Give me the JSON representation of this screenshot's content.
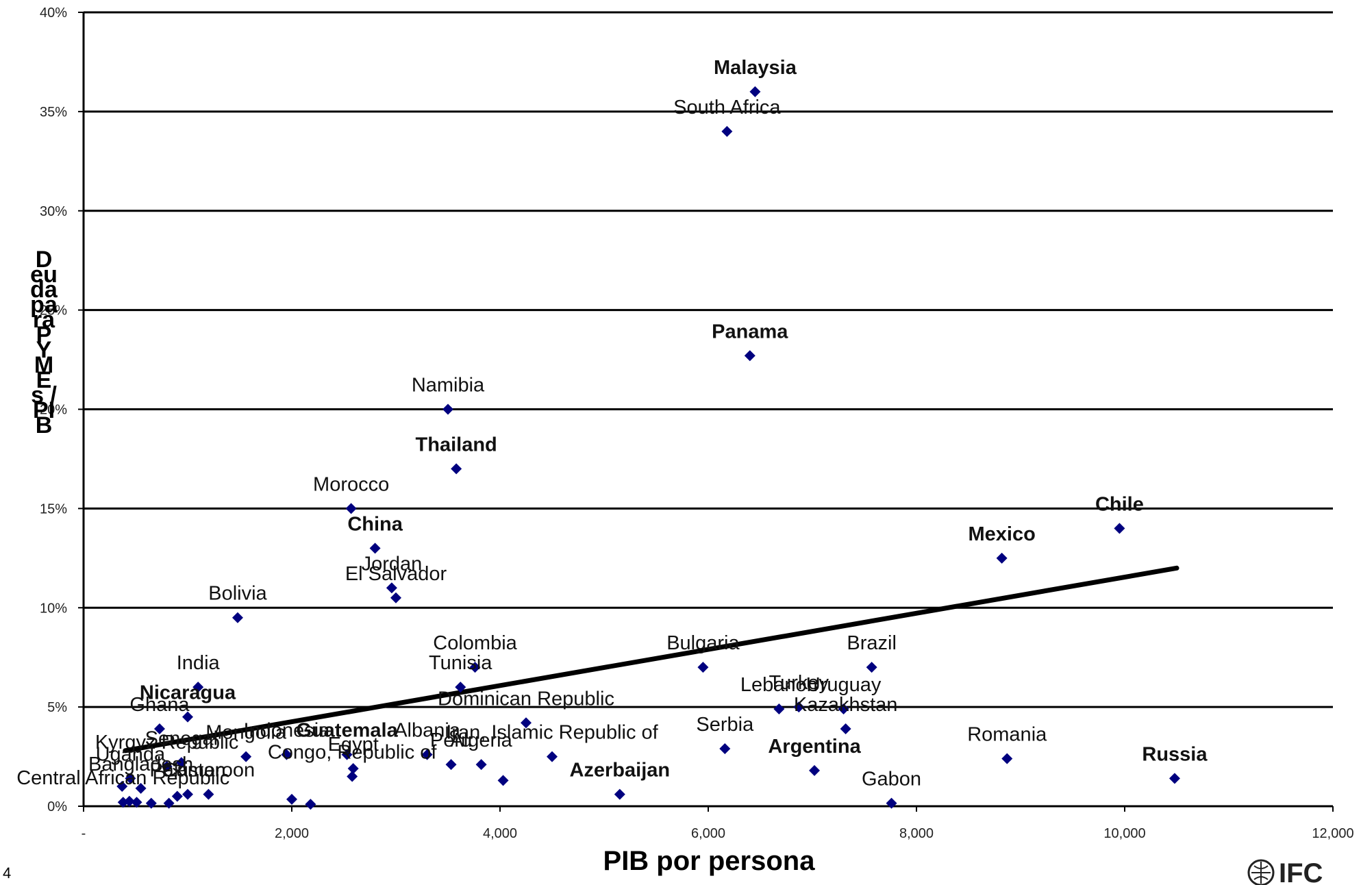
{
  "chart_data": {
    "type": "scatter",
    "xlabel": "PIB por persona",
    "ylabel": "Deuda para PYMEs / PIB",
    "xlim": [
      0,
      12000
    ],
    "ylim": [
      0,
      40
    ],
    "xticks": [
      {
        "value": 0,
        "label": "-"
      },
      {
        "value": 2000,
        "label": "2,000"
      },
      {
        "value": 4000,
        "label": "4,000"
      },
      {
        "value": 6000,
        "label": "6,000"
      },
      {
        "value": 8000,
        "label": "8,000"
      },
      {
        "value": 10000,
        "label": "10,000"
      },
      {
        "value": 12000,
        "label": "12,000"
      }
    ],
    "yticks": [
      {
        "value": 0,
        "label": "0%"
      },
      {
        "value": 5,
        "label": "5%"
      },
      {
        "value": 10,
        "label": "10%"
      },
      {
        "value": 15,
        "label": "15%"
      },
      {
        "value": 20,
        "label": "20%"
      },
      {
        "value": 25,
        "label": "25%"
      },
      {
        "value": 30,
        "label": "30%"
      },
      {
        "value": 35,
        "label": "35%"
      },
      {
        "value": 40,
        "label": "40%"
      }
    ],
    "grid": true,
    "marker_color": "#00007f",
    "trendline": {
      "x": [
        400,
        10500
      ],
      "y": [
        2.8,
        12.0
      ],
      "color": "#000000"
    },
    "points": [
      {
        "label": "Malaysia",
        "x": 6450,
        "y": 36.0,
        "bold": true,
        "color": "#000000"
      },
      {
        "label": "South Africa",
        "x": 6180,
        "y": 34.0,
        "bold": false,
        "color": "#000000"
      },
      {
        "label": "Panama",
        "x": 6400,
        "y": 22.7,
        "bold": true,
        "color": "#1f3a60"
      },
      {
        "label": "Namibia",
        "x": 3500,
        "y": 20.0,
        "bold": false,
        "color": "#000000"
      },
      {
        "label": "Thailand",
        "x": 3580,
        "y": 17.0,
        "bold": true,
        "color": "#000000"
      },
      {
        "label": "Morocco",
        "x": 2570,
        "y": 15.0,
        "bold": false,
        "color": "#000000"
      },
      {
        "label": "China",
        "x": 2800,
        "y": 13.0,
        "bold": true,
        "color": "#000000"
      },
      {
        "label": "Jordan",
        "x": 2960,
        "y": 11.0,
        "bold": false,
        "color": "#000000"
      },
      {
        "label": "El Salvador",
        "x": 3000,
        "y": 10.5,
        "bold": false,
        "color": "#000000"
      },
      {
        "label": "Bolivia",
        "x": 1480,
        "y": 9.5,
        "bold": false,
        "color": "#000000"
      },
      {
        "label": "Mexico",
        "x": 8820,
        "y": 12.5,
        "bold": true,
        "color": "#0000e0"
      },
      {
        "label": "Chile",
        "x": 9950,
        "y": 14.0,
        "bold": true,
        "color": "#000000"
      },
      {
        "label": "Colombia",
        "x": 3760,
        "y": 7.0,
        "bold": false,
        "color": "#000000"
      },
      {
        "label": "Tunisia",
        "x": 3620,
        "y": 6.0,
        "bold": false,
        "color": "#000000"
      },
      {
        "label": "Dominican Republic",
        "x": 4250,
        "y": 4.2,
        "bold": false,
        "color": "#000000"
      },
      {
        "label": "Iran, Islamic Republic of",
        "x": 4500,
        "y": 2.5,
        "bold": false,
        "color": "#000000"
      },
      {
        "label": "Albania",
        "x": 3300,
        "y": 2.6,
        "bold": false,
        "color": "#000000"
      },
      {
        "label": "Peru",
        "x": 3530,
        "y": 2.1,
        "bold": false,
        "color": "#000000"
      },
      {
        "label": "Algeria",
        "x": 3820,
        "y": 2.1,
        "bold": false,
        "color": "#000000"
      },
      {
        "label": "Azerbaijan",
        "x": 5150,
        "y": 0.6,
        "bold": true,
        "color": "#000000"
      },
      {
        "label": "Bulgaria",
        "x": 5950,
        "y": 7.0,
        "bold": false,
        "color": "#000000"
      },
      {
        "label": "Brazil",
        "x": 7570,
        "y": 7.0,
        "bold": false,
        "color": "#000000"
      },
      {
        "label": "Lebanon",
        "x": 6680,
        "y": 4.9,
        "bold": false,
        "color": "#000000"
      },
      {
        "label": "Turkey",
        "x": 6870,
        "y": 5.0,
        "bold": false,
        "color": "#000000"
      },
      {
        "label": "Uruguay",
        "x": 7300,
        "y": 4.9,
        "bold": false,
        "color": "#000000"
      },
      {
        "label": "Kazakhstan",
        "x": 7320,
        "y": 3.9,
        "bold": false,
        "color": "#000000"
      },
      {
        "label": "Serbia",
        "x": 6160,
        "y": 2.9,
        "bold": false,
        "color": "#000000"
      },
      {
        "label": "Argentina",
        "x": 7020,
        "y": 1.8,
        "bold": true,
        "color": "#000000"
      },
      {
        "label": "Gabon",
        "x": 7760,
        "y": 0.15,
        "bold": false,
        "color": "#000000"
      },
      {
        "label": "Romania",
        "x": 8870,
        "y": 2.4,
        "bold": false,
        "color": "#000000"
      },
      {
        "label": "Russia",
        "x": 10480,
        "y": 1.4,
        "bold": true,
        "color": "#000000"
      },
      {
        "label": "India",
        "x": 1100,
        "y": 6.0,
        "bold": false,
        "color": "#000000"
      },
      {
        "label": "Nicaragua",
        "x": 1000,
        "y": 4.5,
        "bold": true,
        "color": "#000000"
      },
      {
        "label": "Ghana",
        "x": 730,
        "y": 3.9,
        "bold": false,
        "color": "#000000"
      },
      {
        "label": "Mongolia",
        "x": 1560,
        "y": 2.5,
        "bold": false,
        "color": "#000000"
      },
      {
        "label": "Indonesia",
        "x": 1950,
        "y": 2.6,
        "bold": false,
        "color": "#000000"
      },
      {
        "label": "Guatemala",
        "x": 2530,
        "y": 2.6,
        "bold": true,
        "color": "#3b6fe0"
      },
      {
        "label": "Senegal",
        "x": 940,
        "y": 2.2,
        "bold": false,
        "color": "#000000"
      },
      {
        "label": "Kyrgyz Republic",
        "x": 800,
        "y": 2.0,
        "bold": false,
        "color": "#000000"
      },
      {
        "label": "Uganda",
        "x": 450,
        "y": 1.4,
        "bold": false,
        "color": "#000000"
      },
      {
        "label": "Cameroon",
        "x": 1200,
        "y": 0.6,
        "bold": false,
        "color": "#000000"
      },
      {
        "label": "Egypt",
        "x": 2590,
        "y": 1.9,
        "bold": false,
        "color": "#000000"
      },
      {
        "label": "Congo, Republic of",
        "x": 2580,
        "y": 1.5,
        "bold": false,
        "color": "#000000"
      },
      {
        "label": "Pakistan",
        "x": 1000,
        "y": 0.6,
        "bold": false,
        "color": "#000000"
      },
      {
        "label": "Bangladesh",
        "x": 550,
        "y": 0.9,
        "bold": false,
        "color": "#000000"
      },
      {
        "label": "Central African Republic",
        "x": 380,
        "y": 0.2,
        "bold": false,
        "color": "#000000"
      },
      {
        "label": "",
        "x": 370,
        "y": 1.0,
        "bold": false,
        "color": "#000000"
      },
      {
        "label": "",
        "x": 440,
        "y": 0.25,
        "bold": false,
        "color": "#000000"
      },
      {
        "label": "",
        "x": 650,
        "y": 0.15,
        "bold": false,
        "color": "#000000"
      },
      {
        "label": "",
        "x": 820,
        "y": 0.15,
        "bold": false,
        "color": "#000000"
      },
      {
        "label": "",
        "x": 900,
        "y": 0.5,
        "bold": false,
        "color": "#000000"
      },
      {
        "label": "",
        "x": 2000,
        "y": 0.35,
        "bold": false,
        "color": "#000000"
      },
      {
        "label": "",
        "x": 2180,
        "y": 0.1,
        "bold": false,
        "color": "#000000"
      },
      {
        "label": "",
        "x": 4030,
        "y": 1.3,
        "bold": false,
        "color": "#000000"
      },
      {
        "label": "",
        "x": 510,
        "y": 0.2,
        "bold": false,
        "color": "#000000"
      }
    ]
  },
  "corner_number": "4",
  "logo_text": "IFC"
}
